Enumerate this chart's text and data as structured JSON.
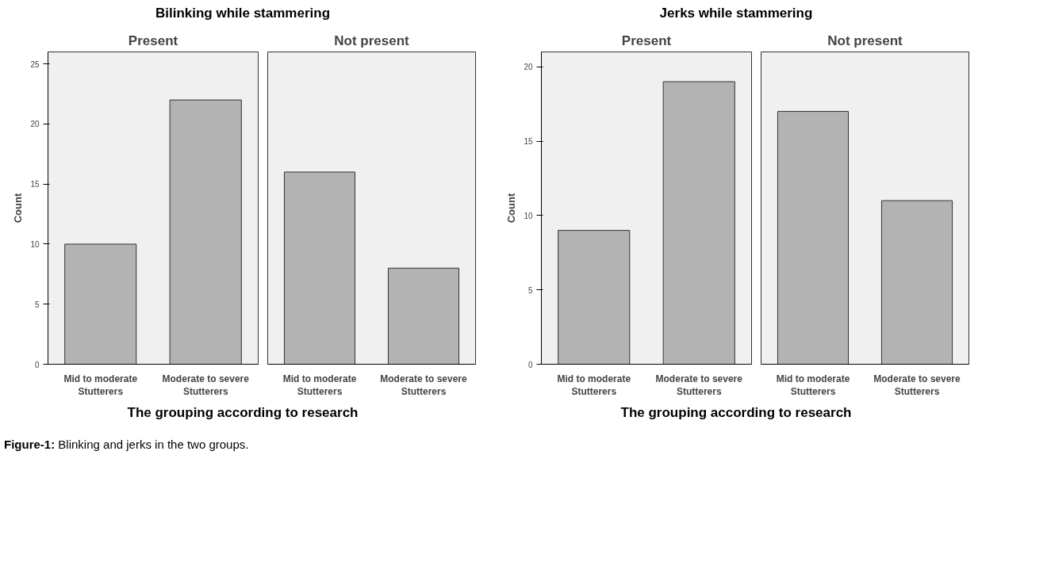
{
  "chart_data": [
    {
      "type": "bar",
      "title": "Bilinking while stammering",
      "subtitle": "Present",
      "xlabel": "The grouping according to research",
      "ylabel": "Count",
      "categories": [
        "Mid to moderate Stutterers",
        "Moderate to severe Stutterers"
      ],
      "values": [
        10,
        22
      ],
      "color": "#b3b3b3",
      "ylim": [
        0,
        26
      ],
      "yticks": [
        0,
        5,
        10,
        15,
        20,
        25
      ]
    },
    {
      "type": "bar",
      "subtitle": "Not present",
      "categories": [
        "Mid to moderate Stutterers",
        "Moderate to severe Stutterers"
      ],
      "values": [
        16,
        8
      ],
      "color": "#b3b3b3",
      "ylim": [
        0,
        26
      ],
      "yticks": [
        0,
        5,
        10,
        15,
        20,
        25
      ],
      "tick_labels": "x"
    },
    {
      "type": "bar",
      "title": "Jerks while stammering",
      "subtitle": "Present",
      "xlabel": "The grouping according to research",
      "ylabel": "Count",
      "categories": [
        "Mid to moderate Stutterers",
        "Moderate to severe Stutterers"
      ],
      "values": [
        9,
        19
      ],
      "color": "#b3b3b3",
      "ylim": [
        0,
        21
      ],
      "yticks": [
        0,
        5,
        10,
        15,
        20
      ]
    },
    {
      "type": "bar",
      "subtitle": "Not present",
      "categories": [
        "Mid to moderate Stutterers",
        "Moderate to severe Stutterers"
      ],
      "values": [
        17,
        11
      ],
      "color": "#b3b3b3",
      "ylim": [
        0,
        21
      ],
      "yticks": [
        0,
        5,
        10,
        15,
        20
      ],
      "tick_labels": "x",
      "annotations": [
        "Figure-1: Blinking and jerks in the two groups."
      ]
    }
  ]
}
